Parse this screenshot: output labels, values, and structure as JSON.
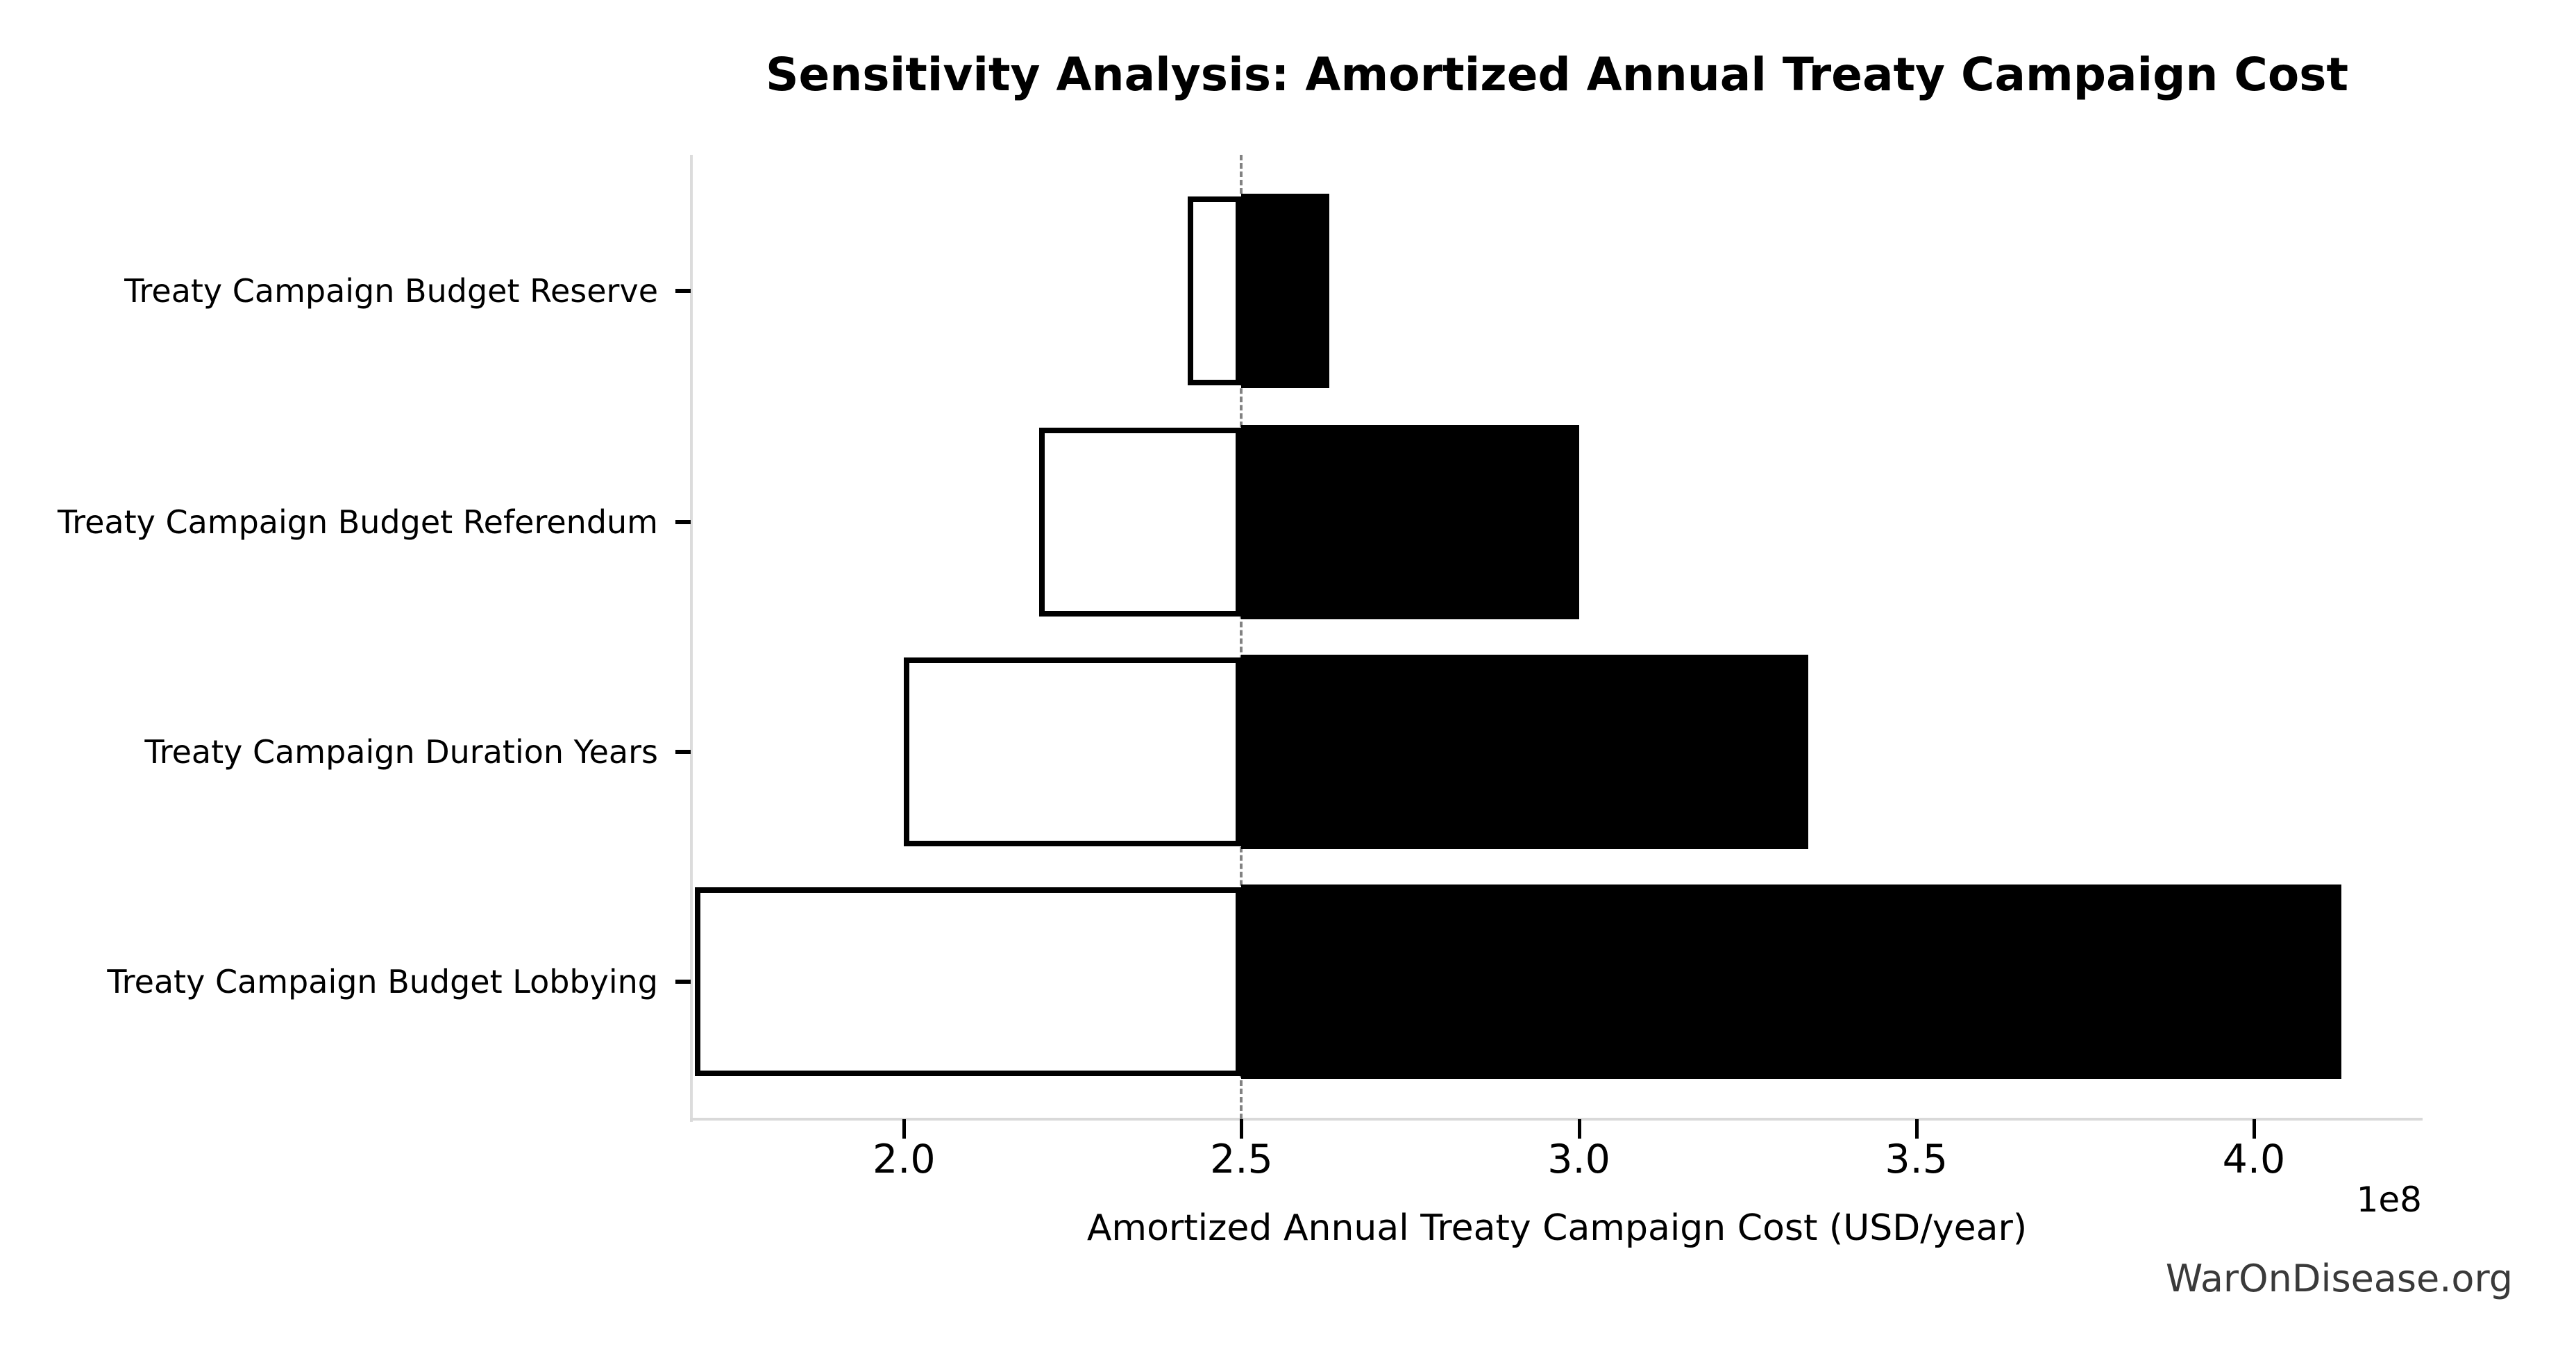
{
  "watermark": "WarOnDisease.org",
  "chart_data": {
    "type": "bar",
    "subtype": "tornado-sensitivity",
    "title": "Sensitivity Analysis: Amortized Annual Treaty Campaign Cost",
    "xlabel": "Amortized Annual Treaty Campaign Cost (USD/year)",
    "x_offset_label": "1e8",
    "x_ticks": [
      "2.0",
      "2.5",
      "3.0",
      "3.5",
      "4.0"
    ],
    "x_tick_values_e8": [
      2.0,
      2.5,
      3.0,
      3.5,
      4.0
    ],
    "xlim_e8": [
      1.686,
      4.249
    ],
    "baseline_e8": 2.5,
    "grid": false,
    "legend": "none",
    "categories": [
      "Treaty Campaign Budget Reserve",
      "Treaty Campaign Budget Referendum",
      "Treaty Campaign Duration Years",
      "Treaty Campaign Budget Lobbying"
    ],
    "series": [
      {
        "name": "low",
        "values_e8": [
          2.42,
          2.2,
          2.0,
          1.69
        ]
      },
      {
        "name": "high",
        "values_e8": [
          2.63,
          3.0,
          3.34,
          4.13
        ]
      }
    ],
    "colors": {
      "low_fill": "#ffffff",
      "high_fill": "#000000",
      "bar_edge": "#000000",
      "baseline_line": "#828282",
      "spine": "#dcdcdc",
      "watermark": "#3a3a3a"
    }
  }
}
